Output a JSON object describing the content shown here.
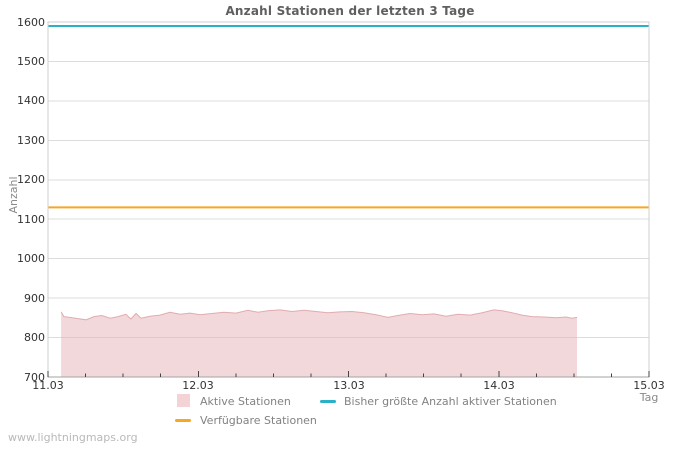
{
  "page": {
    "watermark": "www.lightningmaps.org"
  },
  "chart_data": {
    "type": "area",
    "title": "Anzahl Stationen der letzten 3 Tage",
    "xlabel": "Tag",
    "ylabel": "Anzahl",
    "ylim": [
      700,
      1600
    ],
    "ytick_step": 100,
    "grid": "horizontal",
    "legend_position": "bottom",
    "y_tick_labels": [
      "1600",
      "1500",
      "1400",
      "1300",
      "1200",
      "1100",
      "1000",
      "900",
      "800",
      "700"
    ],
    "x_tick_labels": [
      "11.03",
      "12.03",
      "13.03",
      "14.03",
      "15.03"
    ],
    "minor_ticks_per_day": 4,
    "colors": {
      "grid": "#dcdcdc",
      "border": "#cfcfcf",
      "axis": "#a3a3a3",
      "tick": "#444444",
      "area_fill": "rgba(230,178,182,0.5)",
      "area_edge": "#e0acb0",
      "max_line": "#2ab1c9",
      "available_line": "#f6a820"
    },
    "series": [
      {
        "name": "Aktive Stationen",
        "type": "area",
        "fill": "rgba(230,178,182,0.5)",
        "edge": "#e0acb0",
        "x_unit": "days_since_11.03",
        "points": [
          [
            0.087,
            865
          ],
          [
            0.106,
            853
          ],
          [
            0.146,
            851
          ],
          [
            0.2,
            848
          ],
          [
            0.253,
            845
          ],
          [
            0.306,
            853
          ],
          [
            0.359,
            856
          ],
          [
            0.413,
            849
          ],
          [
            0.466,
            853
          ],
          [
            0.519,
            859
          ],
          [
            0.552,
            847
          ],
          [
            0.586,
            861
          ],
          [
            0.619,
            849
          ],
          [
            0.679,
            854
          ],
          [
            0.745,
            857
          ],
          [
            0.812,
            864
          ],
          [
            0.879,
            859
          ],
          [
            0.945,
            862
          ],
          [
            1.012,
            858
          ],
          [
            1.091,
            861
          ],
          [
            1.171,
            864
          ],
          [
            1.251,
            862
          ],
          [
            1.331,
            869
          ],
          [
            1.398,
            864
          ],
          [
            1.464,
            868
          ],
          [
            1.544,
            870
          ],
          [
            1.624,
            866
          ],
          [
            1.704,
            869
          ],
          [
            1.784,
            866
          ],
          [
            1.863,
            863
          ],
          [
            1.943,
            865
          ],
          [
            2.023,
            866
          ],
          [
            2.103,
            863
          ],
          [
            2.183,
            858
          ],
          [
            2.263,
            851
          ],
          [
            2.329,
            856
          ],
          [
            2.409,
            861
          ],
          [
            2.489,
            858
          ],
          [
            2.569,
            860
          ],
          [
            2.649,
            854
          ],
          [
            2.729,
            859
          ],
          [
            2.809,
            857
          ],
          [
            2.889,
            863
          ],
          [
            2.968,
            870
          ],
          [
            3.022,
            868
          ],
          [
            3.088,
            863
          ],
          [
            3.155,
            857
          ],
          [
            3.221,
            853
          ],
          [
            3.301,
            852
          ],
          [
            3.381,
            850
          ],
          [
            3.448,
            852
          ],
          [
            3.488,
            849
          ],
          [
            3.521,
            851
          ]
        ]
      },
      {
        "name": "Bisher größte Anzahl aktiver Stationen",
        "type": "hline",
        "color": "#2ab1c9",
        "value": 1590
      },
      {
        "name": "Verfügbare Stationen",
        "type": "hline",
        "color": "#f6a820",
        "value": 1130
      }
    ],
    "legend": [
      {
        "label": "Aktive Stationen",
        "swatch": "square",
        "color": "#f3d3d6"
      },
      {
        "label": "Bisher größte Anzahl aktiver Stationen",
        "swatch": "line",
        "color": "#2ab1c9"
      },
      {
        "label": "Verfügbare Stationen",
        "swatch": "line",
        "color": "#f6a820"
      }
    ]
  }
}
